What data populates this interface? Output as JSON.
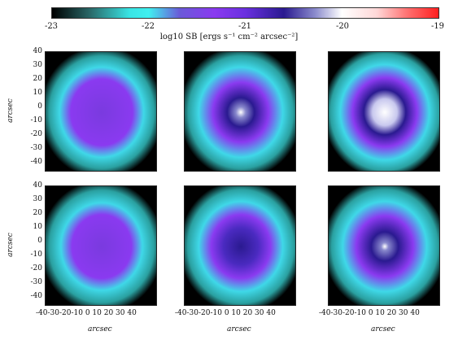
{
  "colorbar": {
    "ticks": [
      "-23",
      "-22",
      "-21",
      "-20",
      "-19"
    ],
    "label": "log10 SB [ergs s⁻¹ cm⁻² arcsec⁻²]"
  },
  "axes": {
    "y_ticks": [
      "40",
      "30",
      "20",
      "10",
      "0",
      "-10",
      "-20",
      "-30",
      "-40"
    ],
    "x_ticks": "-40-30-20-10  0  10 20 30 40",
    "x_label": "arcsec",
    "y_label": "arcsec"
  },
  "panels": [
    {
      "row": 1,
      "col": 1,
      "core": "none"
    },
    {
      "row": 1,
      "col": 2,
      "core": "bright"
    },
    {
      "row": 1,
      "col": 3,
      "core": "very-bright"
    },
    {
      "row": 2,
      "col": 1,
      "core": "none"
    },
    {
      "row": 2,
      "col": 2,
      "core": "dark"
    },
    {
      "row": 2,
      "col": 3,
      "core": "bright"
    }
  ],
  "colors": {
    "outer": "#000000",
    "cyan": "#3fe6e6",
    "purple": "#8a3af0",
    "indigo": "#2a1a90",
    "core": "#ffffff"
  }
}
